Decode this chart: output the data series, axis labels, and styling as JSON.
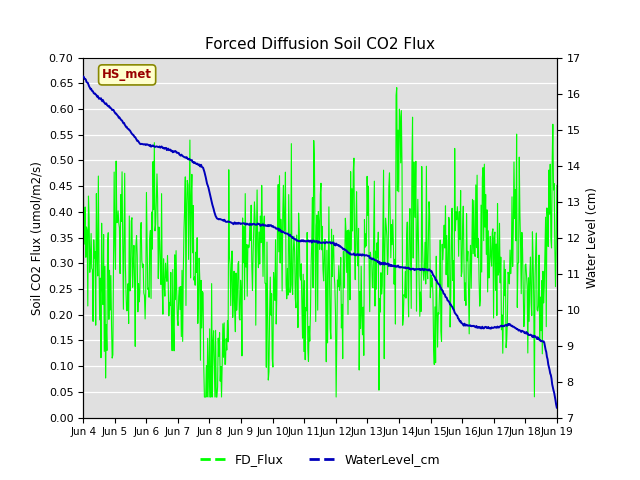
{
  "title": "Forced Diffusion Soil CO2 Flux",
  "ylabel_left": "Soil CO2 Flux (umol/m2/s)",
  "ylabel_right": "Water Level (cm)",
  "ylim_left": [
    0.0,
    0.7
  ],
  "ylim_right": [
    7.0,
    17.0
  ],
  "yticks_left": [
    0.0,
    0.05,
    0.1,
    0.15,
    0.2,
    0.25,
    0.3,
    0.35,
    0.4,
    0.45,
    0.5,
    0.55,
    0.6,
    0.65,
    0.7
  ],
  "yticks_right": [
    7.0,
    8.0,
    9.0,
    10.0,
    11.0,
    12.0,
    13.0,
    14.0,
    15.0,
    16.0,
    17.0
  ],
  "xtick_labels": [
    "Jun 4",
    "Jun 5",
    "Jun 6",
    "Jun 7",
    "Jun 8",
    "Jun 9",
    "Jun 10",
    "Jun 11",
    "Jun 12",
    "Jun 13",
    "Jun 14",
    "Jun 15",
    "Jun 16",
    "Jun 17",
    "Jun 18",
    "Jun 19"
  ],
  "fd_color": "#00ff00",
  "water_color": "#0000bb",
  "fig_bg_color": "#ffffff",
  "plot_bg_color": "#e0e0e0",
  "grid_color": "#ffffff",
  "legend_fd": "FD_Flux",
  "legend_water": "WaterLevel_cm",
  "annotation_text": "HS_met",
  "annotation_color": "#990000",
  "annotation_bg": "#ffffcc",
  "annotation_border": "#888800"
}
